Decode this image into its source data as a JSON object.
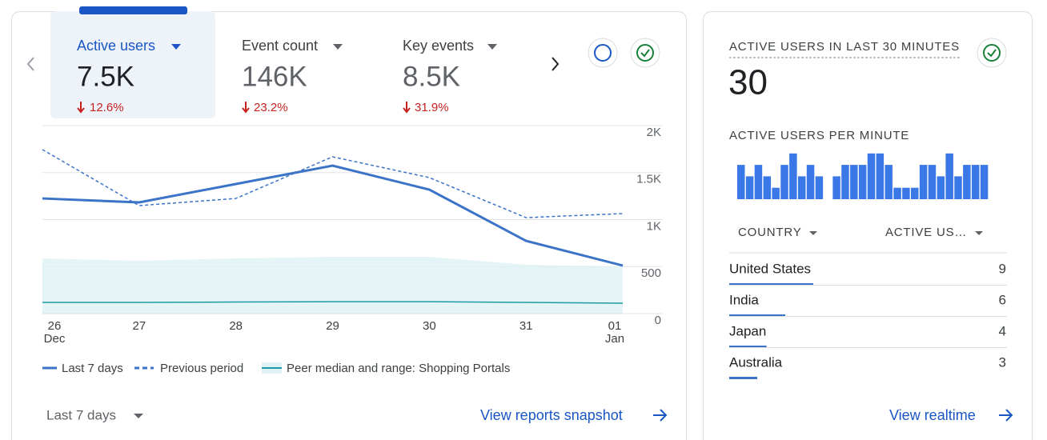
{
  "tabs": [
    {
      "label": "Active users",
      "value": "7.5K",
      "change": "12.6%"
    },
    {
      "label": "Event count",
      "value": "146K",
      "change": "23.2%"
    },
    {
      "label": "Key events",
      "value": "8.5K",
      "change": "31.9%"
    }
  ],
  "chart_data": [
    {
      "type": "line",
      "categories": [
        "26\nDec",
        "27",
        "28",
        "29",
        "30",
        "31",
        "01\nJan"
      ],
      "ylim": [
        0,
        2000
      ],
      "yticks": [
        0,
        500,
        {
          "value": 1000,
          "label": "1K"
        },
        {
          "value": 1500,
          "label": "1.5K"
        },
        {
          "value": 2000,
          "label": "2K"
        }
      ],
      "grid": true,
      "series": [
        {
          "name": "Last 7 days",
          "color": "#3b73c8",
          "style": "solid",
          "values": [
            1225,
            1183,
            1379,
            1574,
            1319,
            774,
            511
          ]
        },
        {
          "name": "Previous period",
          "color": "#3b73c8",
          "style": "dashed",
          "values": [
            1745,
            1149,
            1225,
            1668,
            1447,
            1021,
            1064
          ]
        },
        {
          "name": "Peer median and range: Shopping Portals",
          "color": "#1e9aa6",
          "style": "band",
          "values": [
            119,
            119,
            123,
            127,
            127,
            119,
            111
          ],
          "range_upper": [
            587,
            562,
            587,
            604,
            604,
            519,
            502
          ]
        }
      ]
    },
    {
      "type": "bar",
      "title": "ACTIVE USERS PER MINUTE",
      "color": "#3b78e7",
      "values": [
        3,
        2,
        3,
        2,
        1,
        3,
        4,
        2,
        3,
        2,
        0,
        2,
        3,
        3,
        3,
        4,
        4,
        3,
        1,
        1,
        1,
        3,
        3,
        2,
        4,
        2,
        3,
        3,
        3
      ]
    }
  ],
  "date_range": "Last 7 days",
  "snapshot_link": "View reports snapshot",
  "realtime": {
    "title": "ACTIVE USERS IN LAST 30 MINUTES",
    "value": 30,
    "table": {
      "headers": [
        "COUNTRY",
        "ACTIVE US…"
      ],
      "rows": [
        [
          "United States",
          9
        ],
        [
          "India",
          6
        ],
        [
          "Japan",
          4
        ],
        [
          "Australia",
          3
        ]
      ]
    },
    "link": "View realtime"
  }
}
